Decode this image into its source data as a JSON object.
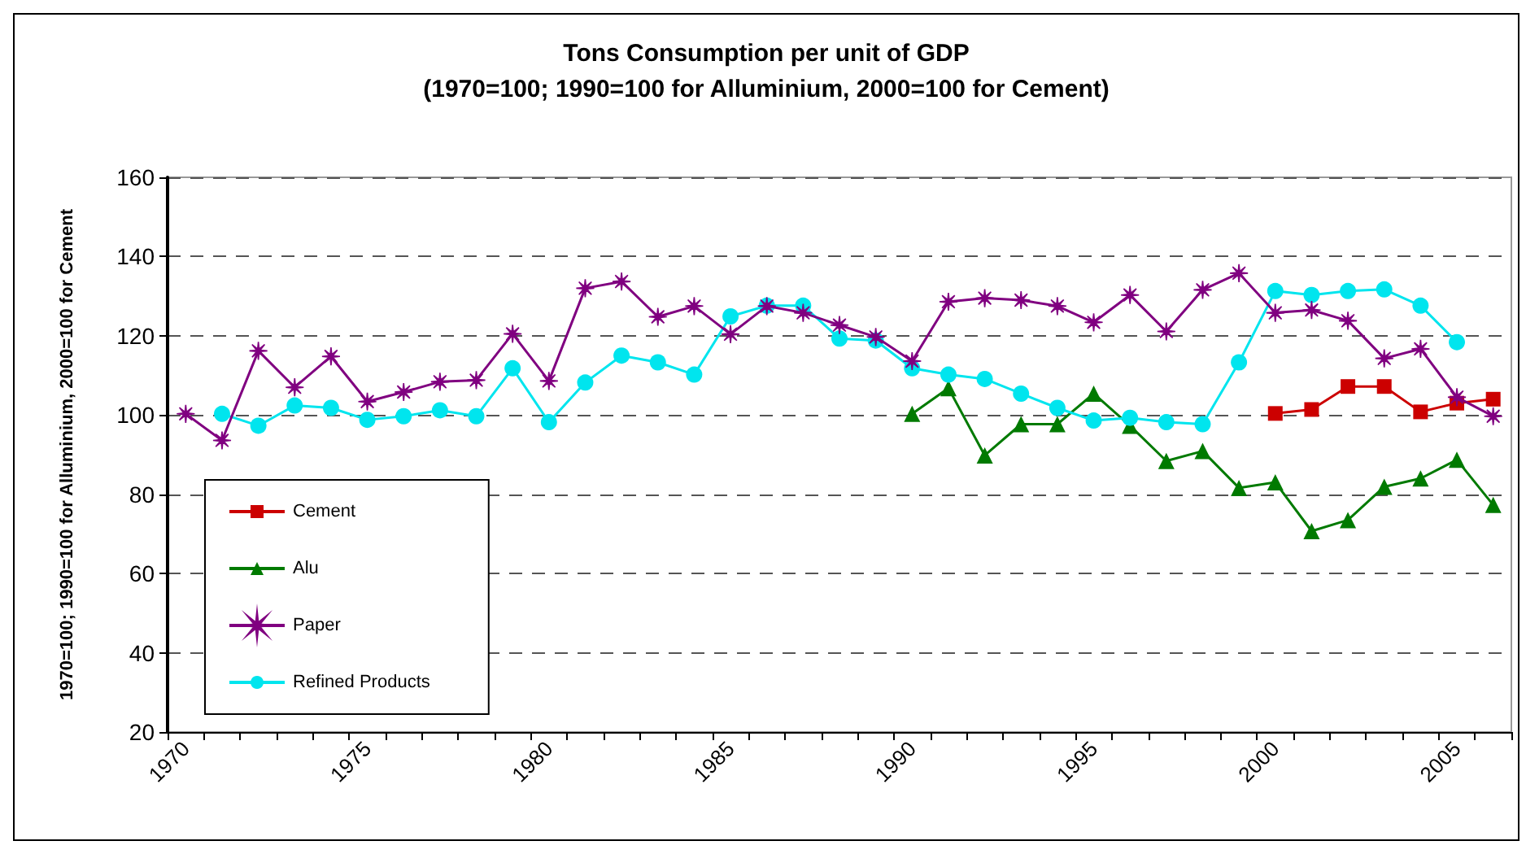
{
  "chart_data": {
    "type": "line",
    "title": "Tons Consumption per unit of GDP\n(1970=100; 1990=100 for Alluminium, 2000=100 for Cement)",
    "ylabel": "1970=100; 1990=100 for Alluminium, 2000=100 for Cement",
    "categories": [
      "1970",
      null,
      null,
      null,
      null,
      "1975",
      null,
      null,
      null,
      null,
      "1980",
      null,
      null,
      null,
      null,
      "1985",
      null,
      null,
      null,
      null,
      "1990",
      null,
      null,
      null,
      null,
      "1995",
      null,
      null,
      null,
      null,
      "2000",
      null,
      null,
      null,
      null,
      "2005",
      null
    ],
    "ylim": [
      20,
      160
    ],
    "yticks": [
      20,
      40,
      60,
      80,
      100,
      120,
      140,
      160
    ],
    "grid": "y",
    "legend": "bottom left",
    "series": [
      {
        "name": "Cement",
        "color": "#cc0000",
        "marker": "square",
        "values": [
          null,
          null,
          null,
          null,
          null,
          null,
          null,
          null,
          null,
          null,
          null,
          null,
          null,
          null,
          null,
          null,
          null,
          null,
          null,
          null,
          null,
          null,
          null,
          null,
          null,
          null,
          null,
          null,
          null,
          null,
          100.4,
          101.4,
          107.2,
          107.2,
          100.8,
          103,
          104
        ]
      },
      {
        "name": "Alu",
        "color": "#007a00",
        "marker": "triangle",
        "values": [
          null,
          null,
          null,
          null,
          null,
          null,
          null,
          null,
          null,
          null,
          null,
          null,
          null,
          null,
          null,
          null,
          null,
          null,
          null,
          null,
          100.3,
          106.8,
          89.8,
          97.7,
          97.7,
          105.4,
          97.3,
          88.4,
          90.9,
          81.6,
          83,
          70.7,
          73.5,
          81.9,
          84,
          88.7,
          77.3
        ]
      },
      {
        "name": "Paper",
        "color": "#800080",
        "marker": "cross",
        "values": [
          100.3,
          93.6,
          116.2,
          107,
          114.8,
          103.4,
          105.8,
          108.4,
          108.8,
          120.5,
          108.6,
          132,
          133.7,
          124.8,
          127.5,
          120.4,
          127.5,
          125.8,
          122.7,
          119.7,
          113.6,
          128.6,
          129.5,
          129,
          127.5,
          123.4,
          130.3,
          121.1,
          131.6,
          135.8,
          125.8,
          126.5,
          123.8,
          114.3,
          116.7,
          104.5,
          99.7
        ]
      },
      {
        "name": "Refined Products",
        "color": "#00e5ee",
        "marker": "circle",
        "values": [
          null,
          100.3,
          97.3,
          102.4,
          101.8,
          98.8,
          99.7,
          101.2,
          99.7,
          111.8,
          98.2,
          108.2,
          115,
          113.3,
          110.2,
          124.9,
          127.6,
          127.6,
          119.3,
          118.8,
          111.8,
          110.2,
          109.1,
          105.4,
          101.8,
          98.6,
          99.3,
          98.2,
          97.7,
          113.3,
          131.3,
          130.3,
          131.3,
          131.7,
          127.6,
          118.4,
          null
        ]
      }
    ]
  }
}
